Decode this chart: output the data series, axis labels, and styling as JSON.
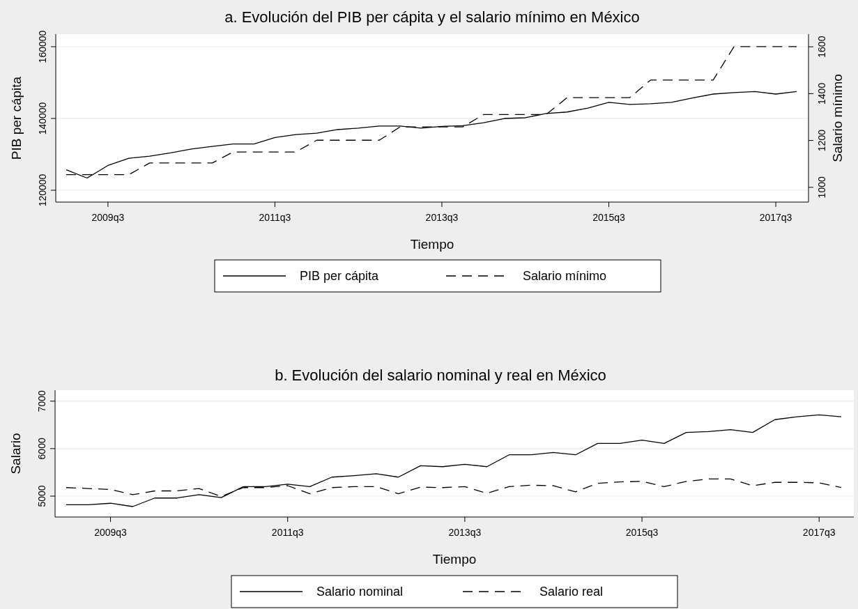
{
  "chart_data": [
    {
      "type": "line",
      "title": "a. Evolución del PIB per cápita y el salario mínimo en México",
      "xlabel": "Tiempo",
      "ylabel": "PIB per cápita",
      "y2label": "Salario mínimo",
      "categories": [
        null,
        null,
        "2009q3",
        null,
        null,
        null,
        null,
        null,
        null,
        null,
        "2011q3",
        null,
        null,
        null,
        null,
        null,
        null,
        null,
        "2013q3",
        null,
        null,
        null,
        null,
        null,
        null,
        null,
        "2015q3",
        null,
        null,
        null,
        null,
        null,
        null,
        null,
        "2017q3",
        null
      ],
      "ylim": [
        116700,
        163500
      ],
      "yticks": [
        120000,
        140000,
        160000
      ],
      "y2lim": [
        937,
        1654
      ],
      "y2ticks": [
        1000,
        1200,
        1400,
        1600
      ],
      "grid": "y",
      "legend": "bottom",
      "series": [
        {
          "name": "PIB per cápita",
          "color": "#000000",
          "line_style": "solid",
          "values": [
            125700,
            123400,
            126900,
            128900,
            129500,
            130400,
            131500,
            132200,
            132900,
            132900,
            134700,
            135500,
            135900,
            136900,
            137300,
            137900,
            137900,
            137300,
            137800,
            138000,
            138800,
            140000,
            140200,
            141400,
            141800,
            142900,
            144500,
            143900,
            144100,
            144500,
            145700,
            146800,
            147200,
            147500,
            146800,
            147500
          ]
        },
        {
          "name": "Salario mínimo",
          "color": "#000000",
          "line_style": "dashed",
          "axis": "y2",
          "values": [
            1054,
            1054,
            1054,
            1054,
            1104,
            1104,
            1104,
            1104,
            1151,
            1151,
            1151,
            1151,
            1201,
            1201,
            1201,
            1201,
            1258,
            1258,
            1258,
            1258,
            1311,
            1311,
            1311,
            1311,
            1383,
            1383,
            1383,
            1383,
            1458,
            1458,
            1458,
            1458,
            1601,
            1601,
            1601,
            1601
          ]
        }
      ]
    },
    {
      "type": "line",
      "title": "b. Evolución del salario nominal y real en México",
      "xlabel": "Tiempo",
      "ylabel": "Salario",
      "categories": [
        null,
        null,
        "2009q3",
        null,
        null,
        null,
        null,
        null,
        null,
        null,
        "2011q3",
        null,
        null,
        null,
        null,
        null,
        null,
        null,
        "2013q3",
        null,
        null,
        null,
        null,
        null,
        null,
        null,
        "2015q3",
        null,
        null,
        null,
        null,
        null,
        null,
        null,
        "2017q3",
        null
      ],
      "ylim": [
        4560,
        7230
      ],
      "yticks": [
        5000,
        6000,
        7000
      ],
      "grid": "y",
      "legend": "bottom",
      "series": [
        {
          "name": "Salario nominal",
          "color": "#000000",
          "line_style": "solid",
          "values": [
            4820,
            4820,
            4850,
            4780,
            4960,
            4960,
            5030,
            4970,
            5200,
            5200,
            5250,
            5200,
            5400,
            5430,
            5470,
            5400,
            5640,
            5620,
            5670,
            5620,
            5870,
            5870,
            5920,
            5870,
            6110,
            6110,
            6180,
            6110,
            6340,
            6360,
            6400,
            6340,
            6610,
            6670,
            6710,
            6670
          ]
        },
        {
          "name": "Salario real",
          "color": "#000000",
          "line_style": "dashed",
          "values": [
            5180,
            5160,
            5140,
            5030,
            5110,
            5110,
            5160,
            4990,
            5180,
            5180,
            5220,
            5050,
            5180,
            5200,
            5200,
            5050,
            5190,
            5180,
            5200,
            5060,
            5200,
            5230,
            5220,
            5090,
            5270,
            5300,
            5310,
            5200,
            5310,
            5360,
            5360,
            5220,
            5290,
            5290,
            5280,
            5180
          ]
        }
      ]
    }
  ]
}
